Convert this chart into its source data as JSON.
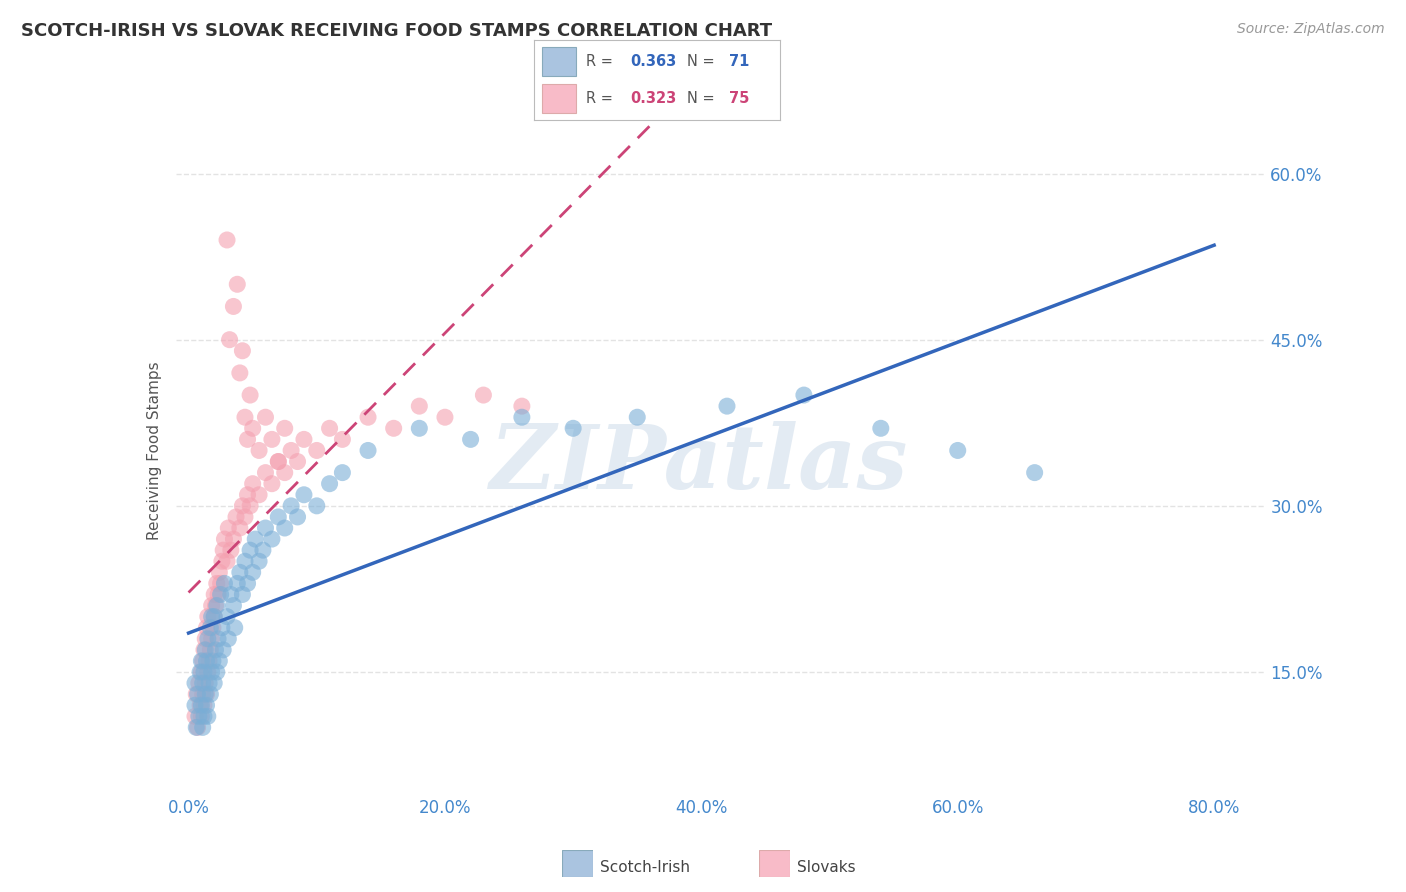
{
  "title": "SCOTCH-IRISH VS SLOVAK RECEIVING FOOD STAMPS CORRELATION CHART",
  "source": "Source: ZipAtlas.com",
  "xlabel_ticks": [
    "0.0%",
    "20.0%",
    "40.0%",
    "60.0%",
    "80.0%"
  ],
  "xlabel_tick_vals": [
    0.0,
    0.2,
    0.4,
    0.6,
    0.8
  ],
  "ylabel_ticks": [
    "15.0%",
    "30.0%",
    "45.0%",
    "60.0%"
  ],
  "ylabel_tick_vals": [
    0.15,
    0.3,
    0.45,
    0.6
  ],
  "xlim": [
    -0.01,
    0.84
  ],
  "ylim": [
    0.04,
    0.66
  ],
  "scotch_irish_R": 0.363,
  "scotch_irish_N": 71,
  "slovak_R": 0.323,
  "slovak_N": 75,
  "scotch_irish_color": "#7aaed6",
  "slovak_color": "#f4a0b0",
  "scotch_irish_line_color": "#3366bb",
  "slovak_line_color": "#cc4477",
  "scotch_irish_x": [
    0.005,
    0.005,
    0.006,
    0.007,
    0.008,
    0.009,
    0.01,
    0.01,
    0.011,
    0.011,
    0.012,
    0.012,
    0.013,
    0.013,
    0.014,
    0.014,
    0.015,
    0.015,
    0.016,
    0.017,
    0.017,
    0.018,
    0.018,
    0.019,
    0.02,
    0.02,
    0.021,
    0.022,
    0.022,
    0.023,
    0.024,
    0.025,
    0.026,
    0.027,
    0.028,
    0.03,
    0.031,
    0.033,
    0.035,
    0.036,
    0.038,
    0.04,
    0.042,
    0.044,
    0.046,
    0.048,
    0.05,
    0.052,
    0.055,
    0.058,
    0.06,
    0.065,
    0.07,
    0.075,
    0.08,
    0.085,
    0.09,
    0.1,
    0.11,
    0.12,
    0.14,
    0.18,
    0.22,
    0.26,
    0.3,
    0.35,
    0.42,
    0.48,
    0.54,
    0.6,
    0.66
  ],
  "scotch_irish_y": [
    0.12,
    0.14,
    0.1,
    0.13,
    0.11,
    0.15,
    0.12,
    0.16,
    0.1,
    0.14,
    0.11,
    0.15,
    0.13,
    0.17,
    0.12,
    0.16,
    0.11,
    0.18,
    0.14,
    0.13,
    0.19,
    0.15,
    0.2,
    0.16,
    0.14,
    0.2,
    0.17,
    0.15,
    0.21,
    0.18,
    0.16,
    0.22,
    0.19,
    0.17,
    0.23,
    0.2,
    0.18,
    0.22,
    0.21,
    0.19,
    0.23,
    0.24,
    0.22,
    0.25,
    0.23,
    0.26,
    0.24,
    0.27,
    0.25,
    0.26,
    0.28,
    0.27,
    0.29,
    0.28,
    0.3,
    0.29,
    0.31,
    0.3,
    0.32,
    0.33,
    0.35,
    0.37,
    0.36,
    0.38,
    0.37,
    0.38,
    0.39,
    0.4,
    0.37,
    0.35,
    0.33
  ],
  "slovak_x": [
    0.005,
    0.006,
    0.007,
    0.008,
    0.009,
    0.01,
    0.01,
    0.011,
    0.011,
    0.012,
    0.012,
    0.013,
    0.013,
    0.014,
    0.014,
    0.015,
    0.015,
    0.016,
    0.017,
    0.018,
    0.018,
    0.019,
    0.02,
    0.02,
    0.021,
    0.022,
    0.023,
    0.024,
    0.025,
    0.026,
    0.027,
    0.028,
    0.03,
    0.031,
    0.033,
    0.035,
    0.037,
    0.04,
    0.042,
    0.044,
    0.046,
    0.048,
    0.05,
    0.055,
    0.06,
    0.065,
    0.07,
    0.075,
    0.08,
    0.085,
    0.09,
    0.1,
    0.11,
    0.12,
    0.14,
    0.16,
    0.18,
    0.2,
    0.23,
    0.26,
    0.03,
    0.032,
    0.035,
    0.038,
    0.04,
    0.042,
    0.044,
    0.046,
    0.048,
    0.05,
    0.055,
    0.06,
    0.065,
    0.07,
    0.075
  ],
  "slovak_y": [
    0.11,
    0.13,
    0.1,
    0.14,
    0.12,
    0.11,
    0.15,
    0.13,
    0.16,
    0.12,
    0.17,
    0.14,
    0.18,
    0.13,
    0.19,
    0.15,
    0.2,
    0.16,
    0.17,
    0.18,
    0.21,
    0.19,
    0.2,
    0.22,
    0.21,
    0.23,
    0.22,
    0.24,
    0.23,
    0.25,
    0.26,
    0.27,
    0.25,
    0.28,
    0.26,
    0.27,
    0.29,
    0.28,
    0.3,
    0.29,
    0.31,
    0.3,
    0.32,
    0.31,
    0.33,
    0.32,
    0.34,
    0.33,
    0.35,
    0.34,
    0.36,
    0.35,
    0.37,
    0.36,
    0.38,
    0.37,
    0.39,
    0.38,
    0.4,
    0.39,
    0.54,
    0.45,
    0.48,
    0.5,
    0.42,
    0.44,
    0.38,
    0.36,
    0.4,
    0.37,
    0.35,
    0.38,
    0.36,
    0.34,
    0.37
  ],
  "background_color": "#ffffff",
  "grid_color": "#dddddd",
  "watermark_text": "ZIPatlas",
  "watermark_color": "#c8d8e8"
}
